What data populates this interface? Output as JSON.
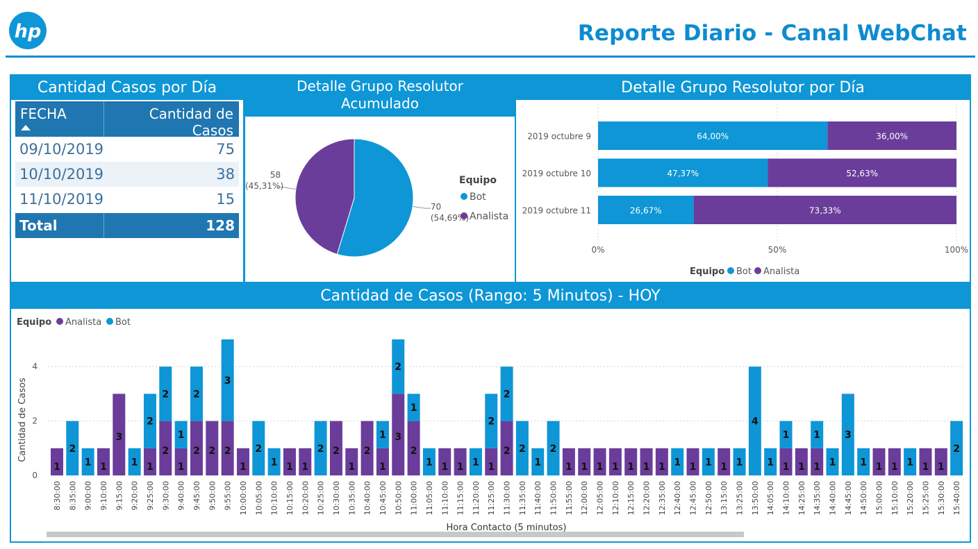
{
  "header": {
    "title": "Reporte Diario - Canal WebChat",
    "logo_text": "hp",
    "accent_color": "#0E8BD0"
  },
  "colors": {
    "bot": "#0E96D6",
    "analista": "#6A3D9A",
    "header_blue": "#0E96D6",
    "table_blue": "#1F76B0"
  },
  "cases_table": {
    "title": "Cantidad Casos por Día",
    "headers": [
      "FECHA",
      "Cantidad de Casos"
    ],
    "rows": [
      {
        "fecha": "09/10/2019",
        "casos": "75"
      },
      {
        "fecha": "10/10/2019",
        "casos": "38"
      },
      {
        "fecha": "11/10/2019",
        "casos": "15"
      }
    ],
    "total_label": "Total",
    "total_value": "128"
  },
  "legend": {
    "title": "Equipo",
    "bot": "Bot",
    "analista": "Analista"
  },
  "chart_data": [
    {
      "type": "pie",
      "title": "Detalle Grupo Resolutor Acumulado",
      "legend_title": "Equipo",
      "slices": [
        {
          "name": "Bot",
          "value": 70,
          "label_value": "70",
          "label_pct": "(54,69%)"
        },
        {
          "name": "Analista",
          "value": 58,
          "label_value": "58",
          "label_pct": "(45,31%)"
        }
      ]
    },
    {
      "type": "bar",
      "orientation": "horizontal",
      "stacked": "100%",
      "title": "Detalle Grupo Resolutor por Día",
      "legend_title": "Equipo",
      "categories": [
        "2019 octubre 9",
        "2019 octubre 10",
        "2019 octubre 11"
      ],
      "series": [
        {
          "name": "Bot",
          "values": [
            64.0,
            47.37,
            26.67
          ],
          "labels": [
            "64,00%",
            "47,37%",
            "26,67%"
          ]
        },
        {
          "name": "Analista",
          "values": [
            36.0,
            52.63,
            73.33
          ],
          "labels": [
            "36,00%",
            "52,63%",
            "73,33%"
          ]
        }
      ],
      "xlim": [
        0,
        100
      ],
      "xticks": [
        "0%",
        "50%",
        "100%"
      ],
      "grid": true
    },
    {
      "type": "bar",
      "stacked": true,
      "title": "Cantidad de Casos (Rango: 5 Minutos) - HOY",
      "xlabel": "Hora Contacto (5 minutos)",
      "ylabel": "Cantidad de Casos",
      "legend_title": "Equipo",
      "ylim": [
        0,
        5
      ],
      "yticks": [
        0,
        2,
        4
      ],
      "grid": true,
      "categories": [
        "8:30:00",
        "8:35:00",
        "9:00:00",
        "9:10:00",
        "9:15:00",
        "9:20:00",
        "9:25:00",
        "9:30:00",
        "9:40:00",
        "9:45:00",
        "9:50:00",
        "9:55:00",
        "10:00:00",
        "10:05:00",
        "10:10:00",
        "10:15:00",
        "10:20:00",
        "10:25:00",
        "10:30:00",
        "10:35:00",
        "10:40:00",
        "10:45:00",
        "10:50:00",
        "11:00:00",
        "11:05:00",
        "11:10:00",
        "11:15:00",
        "11:20:00",
        "11:25:00",
        "11:30:00",
        "11:35:00",
        "11:40:00",
        "11:50:00",
        "11:55:00",
        "12:00:00",
        "12:05:00",
        "12:10:00",
        "12:15:00",
        "12:20:00",
        "12:35:00",
        "12:40:00",
        "12:45:00",
        "12:50:00",
        "13:15:00",
        "13:25:00",
        "13:50:00",
        "14:05:00",
        "14:10:00",
        "14:25:00",
        "14:35:00",
        "14:40:00",
        "14:45:00",
        "14:50:00",
        "15:00:00",
        "15:10:00",
        "15:20:00",
        "15:25:00",
        "15:30:00",
        "15:40:00"
      ],
      "series": [
        {
          "name": "Analista",
          "values": [
            1,
            0,
            0,
            1,
            3,
            0,
            1,
            2,
            1,
            2,
            2,
            2,
            1,
            0,
            0,
            1,
            1,
            0,
            2,
            1,
            2,
            1,
            3,
            2,
            0,
            1,
            1,
            0,
            1,
            2,
            0,
            0,
            0,
            1,
            1,
            1,
            1,
            1,
            1,
            1,
            0,
            1,
            0,
            1,
            0,
            0,
            0,
            1,
            1,
            1,
            0,
            0,
            0,
            1,
            1,
            0,
            1,
            1,
            0
          ]
        },
        {
          "name": "Bot",
          "values": [
            0,
            2,
            1,
            0,
            0,
            1,
            2,
            2,
            1,
            2,
            0,
            3,
            0,
            2,
            1,
            0,
            0,
            2,
            0,
            0,
            0,
            1,
            2,
            1,
            1,
            0,
            0,
            1,
            2,
            2,
            2,
            1,
            2,
            0,
            0,
            0,
            0,
            0,
            0,
            0,
            1,
            0,
            1,
            0,
            1,
            4,
            1,
            1,
            0,
            1,
            1,
            3,
            1,
            0,
            0,
            1,
            0,
            0,
            2
          ]
        }
      ]
    }
  ]
}
